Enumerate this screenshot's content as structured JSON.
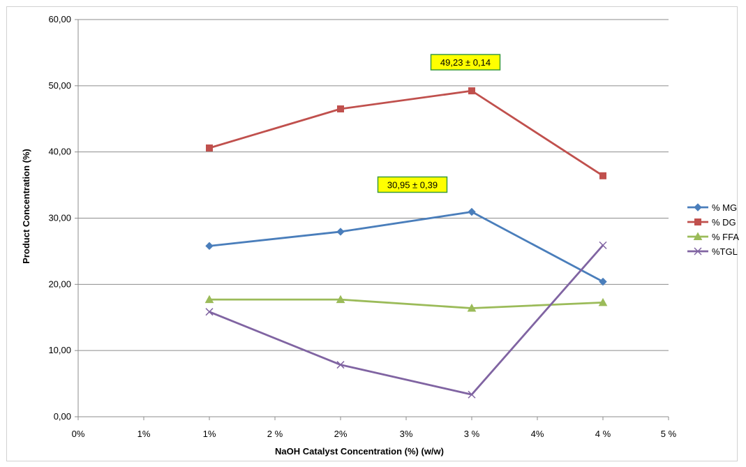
{
  "chart_data": {
    "type": "line",
    "xlabel": "NaOH Catalyst Concentration (%) (w/w)",
    "ylabel": "Product Concentration (%)",
    "ylim": [
      0,
      60
    ],
    "yticks": [
      "0,00",
      "10,00",
      "20,00",
      "30,00",
      "40,00",
      "50,00",
      "60,00"
    ],
    "yticks_values": [
      0,
      10,
      20,
      30,
      40,
      50,
      60
    ],
    "xticks": [
      "0%",
      "1%",
      "1%",
      "2 %",
      "2%",
      "3%",
      "3 %",
      "4%",
      "4 %",
      "5 %"
    ],
    "xticks_values": [
      0,
      0.5,
      1,
      1.5,
      2,
      2.5,
      3,
      3.5,
      4,
      4.5
    ],
    "xlim": [
      0,
      4.5
    ],
    "x": [
      1,
      2,
      3,
      4
    ],
    "grid": "horizontal",
    "legend_position": "right",
    "series": [
      {
        "name": "% MG",
        "values": [
          25.8,
          27.95,
          30.95,
          20.4
        ],
        "color": "#4a7ebb",
        "marker": "diamond"
      },
      {
        "name": "% DG",
        "values": [
          40.6,
          46.5,
          49.23,
          36.4
        ],
        "color": "#c0504d",
        "marker": "square"
      },
      {
        "name": "% FFA",
        "values": [
          17.7,
          17.7,
          16.4,
          17.25
        ],
        "color": "#9bbb59",
        "marker": "triangle"
      },
      {
        "name": "%TGL",
        "values": [
          15.85,
          7.85,
          3.35,
          25.9
        ],
        "color": "#8064a2",
        "marker": "x"
      }
    ],
    "annotations": [
      {
        "text": "49,23 ± 0,14",
        "x": 3,
        "y": 49.23
      },
      {
        "text": "30,95 ± 0,39",
        "x": 3,
        "y": 30.95
      }
    ]
  }
}
